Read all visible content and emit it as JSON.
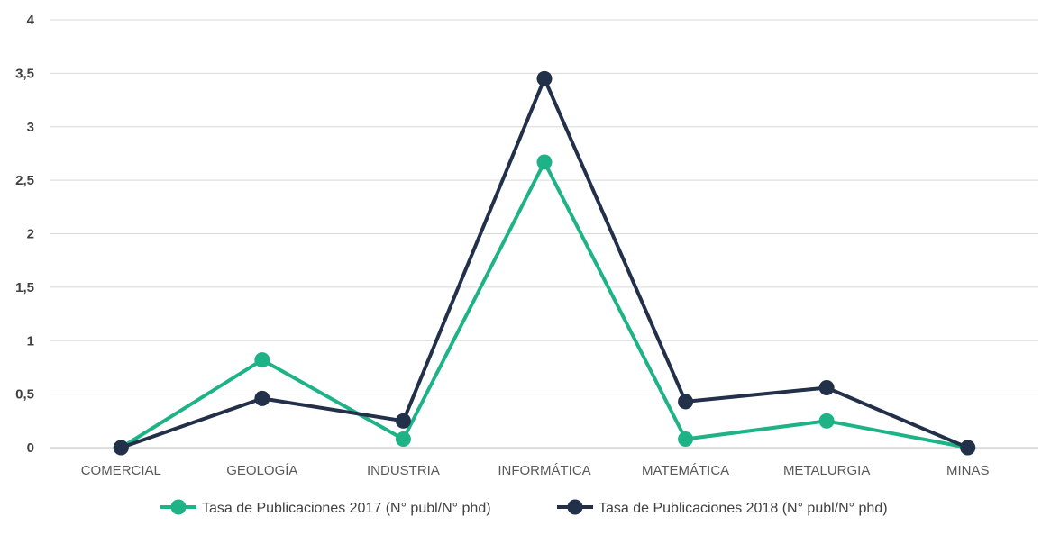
{
  "chart_data": {
    "type": "line",
    "title": "",
    "xlabel": "",
    "ylabel": "",
    "categories": [
      "COMERCIAL",
      "GEOLOGÍA",
      "INDUSTRIA",
      "INFORMÁTICA",
      "MATEMÁTICA",
      "METALURGIA",
      "MINAS"
    ],
    "y_ticks": [
      "0",
      "0,5",
      "1",
      "1,5",
      "2",
      "2,5",
      "3",
      "3,5",
      "4"
    ],
    "ylim": [
      0,
      4
    ],
    "grid": true,
    "legend_position": "bottom",
    "series": [
      {
        "name": "Tasa de Publicaciones 2017 (N° publ/N° phd)",
        "color": "#1db386",
        "values": [
          0,
          0.82,
          0.08,
          2.67,
          0.08,
          0.25,
          0
        ]
      },
      {
        "name": "Tasa de Publicaciones 2018 (N° publ/N° phd)",
        "color": "#22304a",
        "values": [
          0,
          0.46,
          0.25,
          3.45,
          0.43,
          0.56,
          0
        ]
      }
    ]
  }
}
